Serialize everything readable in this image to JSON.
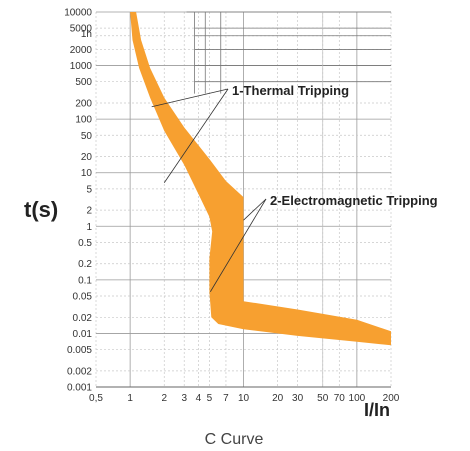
{
  "chart_data": {
    "type": "area",
    "title": "",
    "xlabel": "I/In",
    "ylabel": "t(s)",
    "caption": "C Curve",
    "x_scale": "log",
    "y_scale": "log",
    "xlim": [
      0.5,
      200
    ],
    "ylim": [
      0.001,
      10000
    ],
    "grid": true,
    "x_ticks": [
      0.5,
      1,
      2,
      3,
      4,
      5,
      7,
      10,
      20,
      30,
      50,
      70,
      100,
      200
    ],
    "x_tick_labels": [
      "0,5",
      "1",
      "2",
      "3",
      "4",
      "5",
      "7",
      "10",
      "20",
      "30",
      "50",
      "70",
      "100",
      "200"
    ],
    "y_ticks": [
      0.001,
      0.002,
      0.005,
      0.01,
      0.02,
      0.05,
      0.1,
      0.2,
      0.5,
      1,
      2,
      5,
      10,
      20,
      50,
      100,
      200,
      500,
      1000,
      2000,
      3600,
      5000,
      10000
    ],
    "y_tick_labels": [
      "0.001",
      "0.002",
      "0.005",
      "0.01",
      "0.02",
      "0.05",
      "0.1",
      "0.2",
      "0.5",
      "1",
      "2",
      "5",
      "10",
      "20",
      "50",
      "100",
      "200",
      "500",
      "1000",
      "2000",
      "1h",
      "5000",
      "10000"
    ],
    "band_color": "#f7a030",
    "band": {
      "left_edge": [
        [
          1.0,
          10000
        ],
        [
          1.05,
          3000
        ],
        [
          1.2,
          900
        ],
        [
          1.5,
          250
        ],
        [
          2.0,
          60
        ],
        [
          3.0,
          14
        ],
        [
          4.0,
          4
        ],
        [
          5.0,
          1.5
        ],
        [
          5.3,
          0.8
        ],
        [
          5.0,
          0.25
        ],
        [
          5.0,
          0.06
        ],
        [
          5.2,
          0.02
        ],
        [
          6.0,
          0.015
        ],
        [
          10,
          0.012
        ],
        [
          30,
          0.009
        ],
        [
          100,
          0.007
        ],
        [
          200,
          0.006
        ]
      ],
      "right_edge": [
        [
          1.13,
          10000
        ],
        [
          1.25,
          3000
        ],
        [
          1.5,
          900
        ],
        [
          2.0,
          250
        ],
        [
          3.0,
          70
        ],
        [
          5.0,
          18
        ],
        [
          7.0,
          7
        ],
        [
          10,
          3.5
        ],
        [
          10,
          1.0
        ],
        [
          10,
          0.3
        ],
        [
          10,
          0.05
        ],
        [
          10,
          0.04
        ],
        [
          30,
          0.028
        ],
        [
          100,
          0.018
        ],
        [
          200,
          0.011
        ]
      ]
    },
    "annotations": [
      {
        "text": "1-Thermal Tripping",
        "pointers": [
          [
            1.55,
            170
          ],
          [
            2.0,
            6.5
          ]
        ]
      },
      {
        "text": "2-Electromagnetic Tripping",
        "pointers": [
          [
            10,
            1.3
          ],
          [
            5.1,
            0.06
          ]
        ]
      }
    ]
  }
}
